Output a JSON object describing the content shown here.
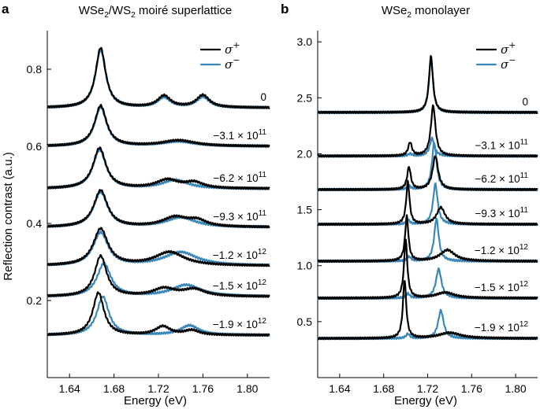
{
  "colors": {
    "sigma_plus": "#000000",
    "sigma_minus": "#3a87b9"
  },
  "chart_data": [
    {
      "type": "line",
      "panel": "a",
      "title": "WSe2/WS2 moiré superlattice",
      "title_parts": {
        "prefix": "WSe",
        "sub1": "2",
        "mid": "/WS",
        "sub2": "2",
        "suffix": " moiré superlattice"
      },
      "xlabel": "Energy (eV)",
      "ylabel": "Reflection contrast (a.u.)",
      "xlim": [
        1.62,
        1.82
      ],
      "ylim": [
        0.0,
        0.9
      ],
      "xticks": [
        "1.64",
        "1.68",
        "1.72",
        "1.76",
        "1.80"
      ],
      "xtick_values": [
        1.64,
        1.68,
        1.72,
        1.76,
        1.8
      ],
      "yticks": [
        "0.2",
        "0.4",
        "0.6",
        "0.8"
      ],
      "ytick_values": [
        0.2,
        0.4,
        0.6,
        0.8
      ],
      "grid": false,
      "legend": {
        "position": "top-right",
        "entries": [
          {
            "symbol": "σ",
            "sup": "+"
          },
          {
            "symbol": "σ",
            "sup": "−"
          }
        ]
      },
      "series": [
        {
          "label": "0",
          "baseline": 0.7,
          "plus": [
            {
              "c": 1.668,
              "a": 0.155,
              "w": 0.0055
            },
            {
              "c": 1.725,
              "a": 0.03,
              "w": 0.007
            },
            {
              "c": 1.76,
              "a": 0.032,
              "w": 0.007
            }
          ],
          "minus": [
            {
              "c": 1.668,
              "a": 0.15,
              "w": 0.0055
            },
            {
              "c": 1.725,
              "a": 0.025,
              "w": 0.007
            },
            {
              "c": 1.76,
              "a": 0.027,
              "w": 0.007
            }
          ]
        },
        {
          "label": "−3.1 × 10",
          "exp": "11",
          "baseline": 0.6,
          "plus": [
            {
              "c": 1.668,
              "a": 0.105,
              "w": 0.0065
            },
            {
              "c": 1.738,
              "a": 0.015,
              "w": 0.018
            }
          ],
          "minus": [
            {
              "c": 1.668,
              "a": 0.1,
              "w": 0.0065
            },
            {
              "c": 1.738,
              "a": 0.012,
              "w": 0.018
            }
          ]
        },
        {
          "label": "−6.2 × 10",
          "exp": "11",
          "baseline": 0.49,
          "plus": [
            {
              "c": 1.667,
              "a": 0.105,
              "w": 0.007
            },
            {
              "c": 1.728,
              "a": 0.022,
              "w": 0.012
            },
            {
              "c": 1.752,
              "a": 0.015,
              "w": 0.01
            }
          ],
          "minus": [
            {
              "c": 1.667,
              "a": 0.1,
              "w": 0.007
            },
            {
              "c": 1.735,
              "a": 0.022,
              "w": 0.014
            }
          ]
        },
        {
          "label": "−9.3 × 10",
          "exp": "11",
          "baseline": 0.39,
          "plus": [
            {
              "c": 1.668,
              "a": 0.095,
              "w": 0.0075
            },
            {
              "c": 1.735,
              "a": 0.025,
              "w": 0.014
            },
            {
              "c": 1.755,
              "a": 0.015,
              "w": 0.01
            }
          ],
          "minus": [
            {
              "c": 1.668,
              "a": 0.09,
              "w": 0.0075
            },
            {
              "c": 1.74,
              "a": 0.025,
              "w": 0.016
            }
          ]
        },
        {
          "label": "−1.2 × 10",
          "exp": "12",
          "baseline": 0.29,
          "plus": [
            {
              "c": 1.668,
              "a": 0.095,
              "w": 0.008
            },
            {
              "c": 1.73,
              "a": 0.035,
              "w": 0.016
            }
          ],
          "minus": [
            {
              "c": 1.668,
              "a": 0.085,
              "w": 0.008
            },
            {
              "c": 1.74,
              "a": 0.035,
              "w": 0.018
            }
          ]
        },
        {
          "label": "−1.5 × 10",
          "exp": "12",
          "baseline": 0.21,
          "plus": [
            {
              "c": 1.668,
              "a": 0.105,
              "w": 0.0065
            },
            {
              "c": 1.725,
              "a": 0.02,
              "w": 0.012
            },
            {
              "c": 1.752,
              "a": 0.018,
              "w": 0.012
            }
          ],
          "minus": [
            {
              "c": 1.671,
              "a": 0.085,
              "w": 0.0075
            },
            {
              "c": 1.745,
              "a": 0.03,
              "w": 0.016
            }
          ]
        },
        {
          "label": "−1.9 × 10",
          "exp": "12",
          "baseline": 0.11,
          "plus": [
            {
              "c": 1.666,
              "a": 0.11,
              "w": 0.006
            },
            {
              "c": 1.724,
              "a": 0.022,
              "w": 0.008
            },
            {
              "c": 1.75,
              "a": 0.012,
              "w": 0.008
            }
          ],
          "minus": [
            {
              "c": 1.67,
              "a": 0.1,
              "w": 0.0065
            },
            {
              "c": 1.748,
              "a": 0.025,
              "w": 0.01
            }
          ]
        }
      ]
    },
    {
      "type": "line",
      "panel": "b",
      "title": "WSe2 monolayer",
      "title_parts": {
        "prefix": "WSe",
        "sub1": "2",
        "suffix": " monolayer"
      },
      "xlabel": "Energy (eV)",
      "xlim": [
        1.62,
        1.82
      ],
      "ylim": [
        0.0,
        3.1
      ],
      "xticks": [
        "1.64",
        "1.68",
        "1.72",
        "1.76",
        "1.80"
      ],
      "xtick_values": [
        1.64,
        1.68,
        1.72,
        1.76,
        1.8
      ],
      "yticks": [
        "0.5",
        "1.0",
        "1.5",
        "2.0",
        "2.5",
        "3.0"
      ],
      "ytick_values": [
        0.5,
        1.0,
        1.5,
        2.0,
        2.5,
        3.0
      ],
      "grid": false,
      "legend": {
        "position": "top-right",
        "entries": [
          {
            "symbol": "σ",
            "sup": "+"
          },
          {
            "symbol": "σ",
            "sup": "−"
          }
        ]
      },
      "series": [
        {
          "label": "0",
          "baseline": 2.37,
          "plus": [
            {
              "c": 1.723,
              "a": 0.5,
              "w": 0.0022
            }
          ],
          "minus": [
            {
              "c": 1.723,
              "a": 0.48,
              "w": 0.0022
            }
          ]
        },
        {
          "label": "−3.1 × 10",
          "exp": "11",
          "baseline": 1.98,
          "plus": [
            {
              "c": 1.704,
              "a": 0.12,
              "w": 0.002
            },
            {
              "c": 1.725,
              "a": 0.45,
              "w": 0.0025
            }
          ],
          "minus": [
            {
              "c": 1.724,
              "a": 0.16,
              "w": 0.0025
            },
            {
              "c": 1.704,
              "a": 0.02,
              "w": 0.002
            }
          ]
        },
        {
          "label": "−6.2 × 10",
          "exp": "11",
          "baseline": 1.68,
          "plus": [
            {
              "c": 1.703,
              "a": 0.2,
              "w": 0.002
            },
            {
              "c": 1.727,
              "a": 0.3,
              "w": 0.003
            }
          ],
          "minus": [
            {
              "c": 1.726,
              "a": 0.42,
              "w": 0.0025
            },
            {
              "c": 1.703,
              "a": 0.03,
              "w": 0.002
            }
          ]
        },
        {
          "label": "−9.3 × 10",
          "exp": "11",
          "baseline": 1.37,
          "plus": [
            {
              "c": 1.702,
              "a": 0.38,
              "w": 0.0018
            },
            {
              "c": 1.732,
              "a": 0.15,
              "w": 0.0045
            }
          ],
          "minus": [
            {
              "c": 1.727,
              "a": 0.36,
              "w": 0.0025
            },
            {
              "c": 1.702,
              "a": 0.04,
              "w": 0.0018
            }
          ]
        },
        {
          "label": "−1.2 × 10",
          "exp": "12",
          "baseline": 1.04,
          "plus": [
            {
              "c": 1.701,
              "a": 0.4,
              "w": 0.0018
            },
            {
              "c": 1.738,
              "a": 0.1,
              "w": 0.008
            }
          ],
          "minus": [
            {
              "c": 1.728,
              "a": 0.38,
              "w": 0.0025
            },
            {
              "c": 1.703,
              "a": 0.04,
              "w": 0.002
            }
          ]
        },
        {
          "label": "−1.5 × 10",
          "exp": "12",
          "baseline": 0.71,
          "plus": [
            {
              "c": 1.7,
              "a": 0.52,
              "w": 0.0018
            },
            {
              "c": 1.736,
              "a": 0.05,
              "w": 0.01
            }
          ],
          "minus": [
            {
              "c": 1.73,
              "a": 0.26,
              "w": 0.003
            },
            {
              "c": 1.702,
              "a": 0.04,
              "w": 0.002
            }
          ]
        },
        {
          "label": "−1.9 × 10",
          "exp": "12",
          "baseline": 0.35,
          "plus": [
            {
              "c": 1.699,
              "a": 0.52,
              "w": 0.0018
            },
            {
              "c": 1.74,
              "a": 0.05,
              "w": 0.012
            }
          ],
          "minus": [
            {
              "c": 1.732,
              "a": 0.25,
              "w": 0.003
            },
            {
              "c": 1.702,
              "a": 0.04,
              "w": 0.002
            }
          ]
        }
      ]
    }
  ]
}
